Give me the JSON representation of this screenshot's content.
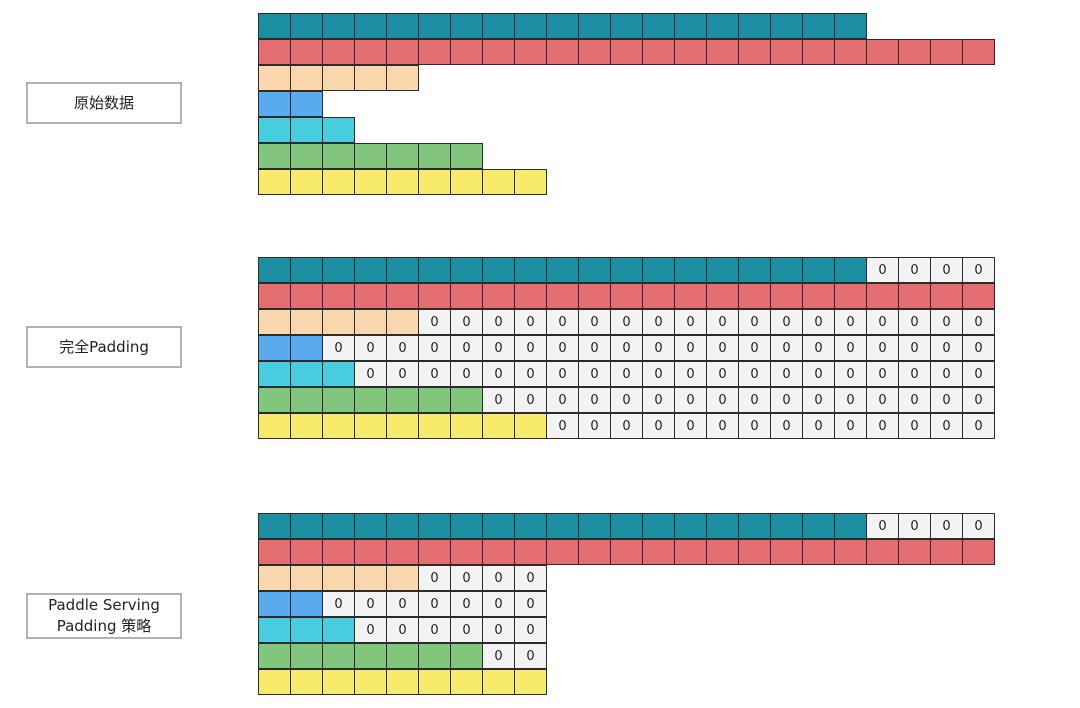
{
  "labels": {
    "original": "原始数据",
    "full": "完全Padding",
    "serving_line1": "Paddle Serving",
    "serving_line2": "Padding 策略"
  },
  "pad_value": "0",
  "row_colors": [
    "#1b8fa1",
    "#e46d70",
    "#fbd7ad",
    "#5aaaf0",
    "#48cde0",
    "#82c67e",
    "#f8ea6a"
  ],
  "data_lengths": [
    19,
    23,
    5,
    2,
    3,
    7,
    9
  ],
  "sections": [
    {
      "name": "original",
      "pad_to": [
        0,
        0,
        0,
        0,
        0,
        0,
        0
      ]
    },
    {
      "name": "full",
      "pad_to": [
        23,
        23,
        23,
        23,
        23,
        23,
        23
      ]
    },
    {
      "name": "serving",
      "pad_to": [
        23,
        23,
        9,
        9,
        9,
        9,
        9
      ]
    }
  ]
}
